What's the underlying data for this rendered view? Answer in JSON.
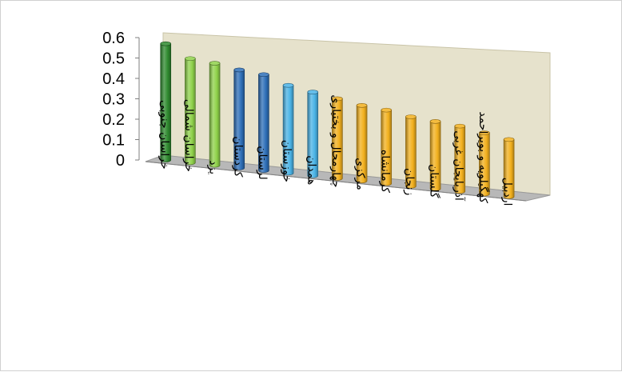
{
  "chart_data": {
    "type": "bar",
    "three_d": true,
    "bar_shape": "cylinder",
    "categories": [
      "خراسان جنوبی",
      "خراسان شمالی",
      "یزد",
      "کردستان",
      "لرستان",
      "خوزستان",
      "همدان",
      "چهارمحال و بختیاری",
      "مرکزی",
      "کرمانشاه",
      "زنجان",
      "گلستان",
      "آذربایجان غربی",
      "کهگیلویه و بویراحمد",
      "اردبیل"
    ],
    "values": [
      0.57,
      0.51,
      0.5,
      0.48,
      0.47,
      0.43,
      0.41,
      0.39,
      0.37,
      0.36,
      0.34,
      0.33,
      0.32,
      0.3,
      0.28
    ],
    "bar_colors": [
      "#2f8a2f",
      "#8fd14a",
      "#8fd14a",
      "#2e6fb8",
      "#2e6fb8",
      "#4ab3e6",
      "#4ab3e6",
      "#f2b01e",
      "#f2b01e",
      "#f2b01e",
      "#f2b01e",
      "#f2b01e",
      "#f2b01e",
      "#f2b01e",
      "#f2b01e"
    ],
    "y_ticks": [
      "0",
      "0.1",
      "0.2",
      "0.3",
      "0.4",
      "0.5",
      "0.6"
    ],
    "ylim": [
      0,
      0.6
    ],
    "title": "",
    "xlabel": "",
    "ylabel": "",
    "grid": false,
    "legend": "none",
    "wall_color": "#e6e2cc",
    "floor_color": "#b8b8b8"
  }
}
